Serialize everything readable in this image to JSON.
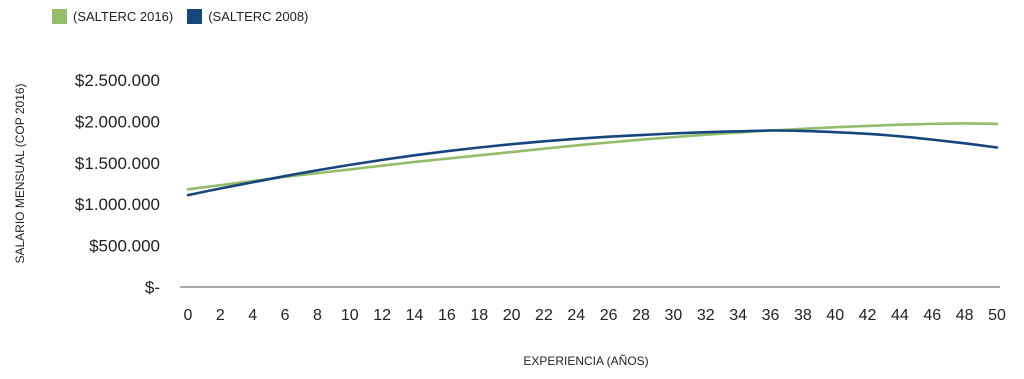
{
  "chart_data": {
    "type": "line",
    "title": "",
    "xlabel": "EXPERIENCIA (AÑOS)",
    "ylabel": "SALARIO MENSUAL (COP 2016)",
    "x": [
      0,
      2,
      4,
      6,
      8,
      10,
      12,
      14,
      16,
      18,
      20,
      22,
      24,
      26,
      28,
      30,
      32,
      34,
      36,
      38,
      40,
      42,
      44,
      46,
      48,
      50
    ],
    "xlim": [
      0,
      50
    ],
    "ylim": [
      0,
      2500000
    ],
    "yticks": [
      0,
      500000,
      1000000,
      1500000,
      2000000,
      2500000
    ],
    "ytick_labels": [
      "$-",
      "$500.000",
      "$1.000.000",
      "$1.500.000",
      "$2.000.000",
      "$2.500.000"
    ],
    "xtick_labels": [
      "0",
      "2",
      "4",
      "6",
      "8",
      "10",
      "12",
      "14",
      "16",
      "18",
      "20",
      "22",
      "24",
      "26",
      "28",
      "30",
      "32",
      "34",
      "36",
      "38",
      "40",
      "42",
      "44",
      "46",
      "48",
      "50"
    ],
    "grid": false,
    "legend_position": "top-left",
    "series": [
      {
        "name": "(SALTERC 2016)",
        "color": "#93bd6a",
        "values": [
          1180000,
          1230000,
          1280000,
          1330000,
          1375000,
          1420000,
          1465000,
          1510000,
          1550000,
          1590000,
          1630000,
          1670000,
          1710000,
          1745000,
          1780000,
          1810000,
          1840000,
          1865000,
          1890000,
          1910000,
          1930000,
          1945000,
          1960000,
          1970000,
          1975000,
          1970000
        ]
      },
      {
        "name": "(SALTERC  2008)",
        "color": "#17467e",
        "values": [
          1110000,
          1190000,
          1265000,
          1340000,
          1410000,
          1475000,
          1535000,
          1590000,
          1640000,
          1685000,
          1725000,
          1760000,
          1790000,
          1815000,
          1835000,
          1855000,
          1870000,
          1880000,
          1890000,
          1885000,
          1870000,
          1850000,
          1820000,
          1780000,
          1735000,
          1685000
        ]
      }
    ]
  }
}
